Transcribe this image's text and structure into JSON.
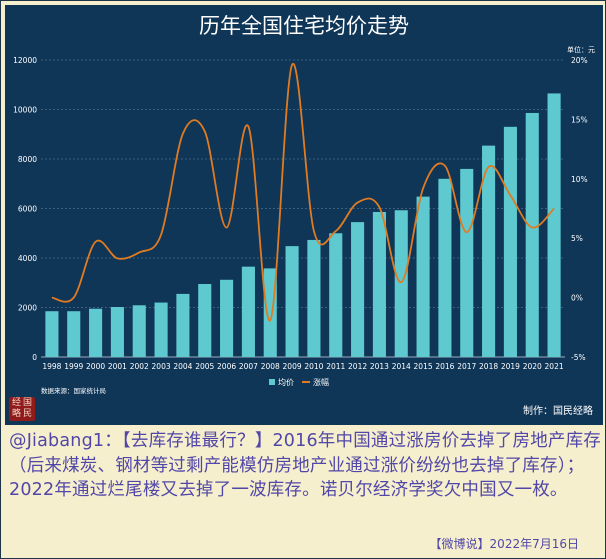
{
  "chart_data": {
    "type": "bar+line",
    "title": "历年全国住宅均价走势",
    "categories": [
      "1998",
      "1999",
      "2000",
      "2001",
      "2002",
      "2003",
      "2004",
      "2005",
      "2006",
      "2007",
      "2008",
      "2009",
      "2010",
      "2011",
      "2012",
      "2013",
      "2014",
      "2015",
      "2016",
      "2017",
      "2018",
      "2019",
      "2020",
      "2021"
    ],
    "series": [
      {
        "name": "均价",
        "axis": "left",
        "kind": "bar",
        "color": "#5ec9cf",
        "values": [
          1850,
          1850,
          1950,
          2020,
          2090,
          2200,
          2550,
          2950,
          3120,
          3650,
          3580,
          4480,
          4730,
          5000,
          5450,
          5860,
          5930,
          6480,
          7200,
          7600,
          8540,
          9300,
          9860,
          10650
        ]
      },
      {
        "name": "涨幅",
        "axis": "right",
        "kind": "line",
        "color": "#e07b21",
        "values": [
          0.0,
          0.0,
          4.7,
          3.3,
          3.8,
          5.3,
          13.8,
          14.0,
          5.9,
          14.4,
          -1.9,
          19.6,
          5.6,
          5.6,
          8.0,
          7.6,
          1.3,
          9.2,
          11.1,
          5.5,
          11.0,
          8.6,
          5.9,
          7.5
        ]
      }
    ],
    "y_left": {
      "lim": [
        0,
        12000
      ],
      "ticks": [
        "0",
        "2000",
        "4000",
        "6000",
        "8000",
        "10000",
        "12000"
      ]
    },
    "y_right": {
      "lim": [
        -5,
        20
      ],
      "ticks": [
        "-5%",
        "0%",
        "5%",
        "10%",
        "15%",
        "20%"
      ],
      "unit_label": "单位：元"
    },
    "legend": [
      "均价",
      "涨幅"
    ],
    "legend_position": "bottom",
    "grid": "horizontal-dashed",
    "source": "数据来源：国家统计局",
    "credit": "制作：国民经略"
  },
  "stamp_text": [
    "经",
    "国",
    "略",
    "民"
  ],
  "post": {
    "text": "@Jiabang1：【去库存谁最行？】2016年中国通过涨房价去掉了房地产库存（后来煤炭、钢材等过剩产能模仿房地产业通过涨价纷纷也去掉了库存）；2022年通过烂尾楼又去掉了一波库存。诺贝尔经济学奖欠中国又一枚。",
    "footer": "【微博说】2022年7月16日"
  },
  "colors": {
    "panel": "#0f3557",
    "post_text": "#5147a8",
    "background": "#f6efcd"
  }
}
